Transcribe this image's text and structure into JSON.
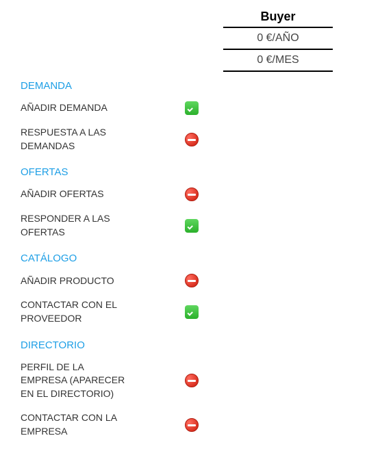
{
  "plan": {
    "name": "Buyer",
    "price_year": "0 €/AÑO",
    "price_month": "0 €/MES"
  },
  "icons": {
    "yes_name": "check-icon",
    "no_name": "no-entry-icon"
  },
  "colors": {
    "section_title": "#1e9fe6",
    "text": "#333333",
    "border": "#000000",
    "yes_bg_top": "#5fd75f",
    "yes_bg_bottom": "#2bb02b",
    "no_bg_light": "#ff6b5e",
    "no_bg_dark": "#d62a1a"
  },
  "sections": [
    {
      "title": "DEMANDA",
      "items": [
        {
          "label": "AÑADIR DEMANDA",
          "value": "yes"
        },
        {
          "label": "RESPUESTA A LAS DEMANDAS",
          "value": "no"
        }
      ]
    },
    {
      "title": "OFERTAS",
      "items": [
        {
          "label": "AÑADIR OFERTAS",
          "value": "no"
        },
        {
          "label": "RESPONDER A LAS OFERTAS",
          "value": "yes"
        }
      ]
    },
    {
      "title": "CATÁLOGO",
      "items": [
        {
          "label": "AÑADIR PRODUCTO",
          "value": "no"
        },
        {
          "label": "CONTACTAR CON EL PROVEEDOR",
          "value": "yes"
        }
      ]
    },
    {
      "title": "DIRECTORIO",
      "items": [
        {
          "label": "PERFIL DE LA EMPRESA (APARECER EN EL DIRECTORIO)",
          "value": "no"
        },
        {
          "label": "CONTACTAR CON LA EMPRESA",
          "value": "no"
        }
      ]
    }
  ]
}
